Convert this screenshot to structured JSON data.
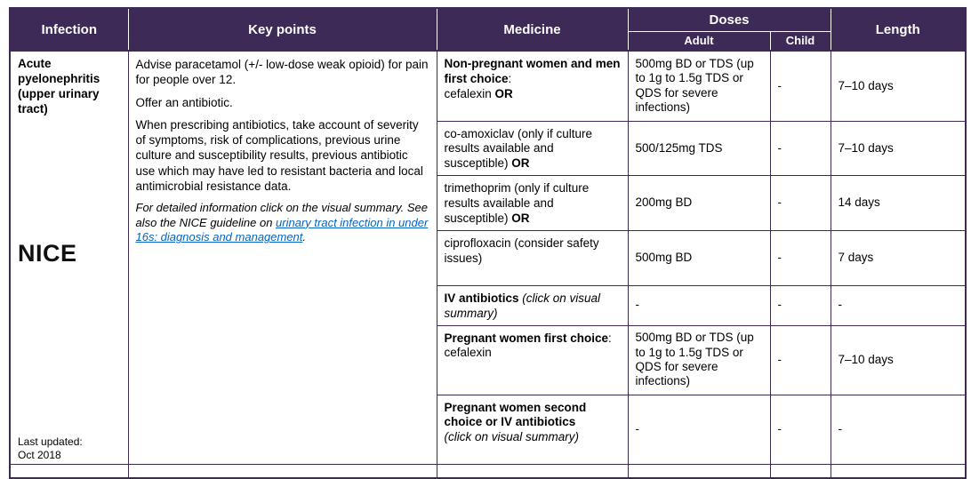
{
  "header": {
    "infection": "Infection",
    "key_points": "Key points",
    "medicine": "Medicine",
    "doses": "Doses",
    "adult": "Adult",
    "child": "Child",
    "length": "Length"
  },
  "infection_cell": {
    "name": "Acute pyelonephritis (upper urinary tract)",
    "logo": "NICE",
    "last_updated_label": "Last updated:",
    "last_updated_value": "Oct 2018"
  },
  "key_points": {
    "para1": "Advise paracetamol (+/- low-dose weak opioid) for pain for people over 12.",
    "para2": "Offer an antibiotic.",
    "para3": "When prescribing antibiotics, take account of severity of symptoms, risk of complications, previous urine culture and susceptibility results, previous antibiotic use which may have led to resistant bacteria and local antimicrobial resistance data.",
    "note_text": "For detailed information click on the visual summary. See also the NICE guideline on ",
    "note_link": "urinary tract infection in under 16s: diagnosis and management",
    "note_end": "."
  },
  "rows": [
    {
      "med_b1": "Non-pregnant women and men first choice",
      "med_n1": ":",
      "med_n2": "cefalexin ",
      "med_b2": "OR",
      "adult": "500mg BD or TDS (up to 1g to 1.5g TDS or QDS for severe infections)",
      "child": "-",
      "length": "7–10 days"
    },
    {
      "med_n1": "co-amoxiclav (only if culture results available and susceptible) ",
      "med_b1": "OR",
      "adult": "500/125mg TDS",
      "child": "-",
      "length": "7–10 days"
    },
    {
      "med_n1": "trimethoprim (only if culture results available and susceptible) ",
      "med_b1": "OR",
      "adult": "200mg BD",
      "child": "-",
      "length": "14 days"
    },
    {
      "med_n1": "ciprofloxacin (consider safety issues)",
      "adult": "500mg BD",
      "child": "-",
      "length": "7 days"
    },
    {
      "med_b1": "IV antibiotics ",
      "med_i1": "(click on visual summary)",
      "adult": "-",
      "child": "-",
      "length": "-"
    },
    {
      "med_b1": "Pregnant women first choice",
      "med_n1": ": cefalexin",
      "adult": "500mg BD or TDS (up to 1g to 1.5g TDS or QDS for severe infections)",
      "child": "-",
      "length": "7–10 days"
    },
    {
      "med_b1": "Pregnant women second choice or IV antibiotics ",
      "med_i1": "(click on visual summary)",
      "adult": "-",
      "child": "-",
      "length": "-"
    }
  ]
}
